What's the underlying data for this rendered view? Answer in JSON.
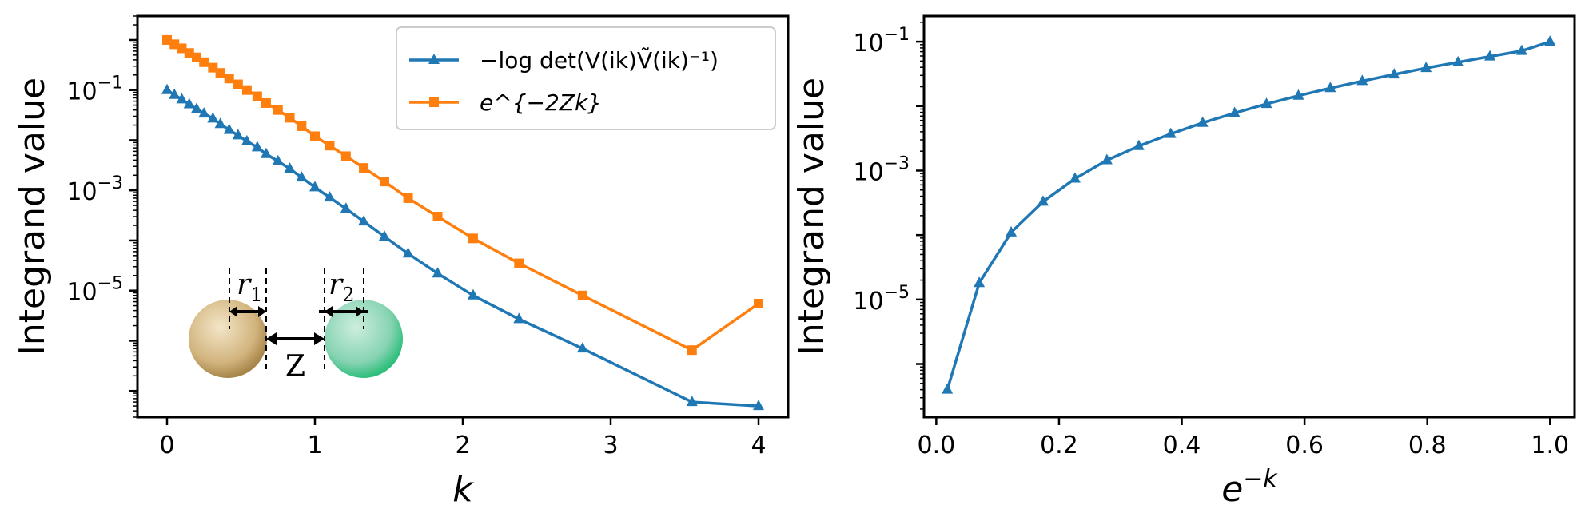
{
  "chart_data": [
    {
      "type": "line",
      "xlabel": "k",
      "ylabel": "Integrand value",
      "yscale": "log",
      "xlim": [
        -0.2,
        4.2
      ],
      "ylim": [
        3e-08,
        3.0
      ],
      "xticks": [
        "0",
        "1",
        "2",
        "3",
        "4"
      ],
      "yticks": [
        {
          "base": "10",
          "exp": "−1",
          "value": 0.1
        },
        {
          "base": "10",
          "exp": "−3",
          "value": 0.001
        },
        {
          "base": "10",
          "exp": "−5",
          "value": 1e-05
        }
      ],
      "legend_position": "top-right",
      "series": [
        {
          "name": "−log det(V(ik)Ṽ(ik)⁻¹)",
          "color": "#1f77b4",
          "marker": "triangle",
          "x": [
            0.0,
            0.05,
            0.1,
            0.15,
            0.2,
            0.25,
            0.31,
            0.36,
            0.42,
            0.48,
            0.54,
            0.61,
            0.67,
            0.75,
            0.83,
            0.91,
            1.0,
            1.1,
            1.21,
            1.33,
            1.47,
            1.63,
            1.83,
            2.07,
            2.38,
            2.81,
            3.55,
            4.0
          ],
          "values": [
            0.1,
            0.08,
            0.065,
            0.052,
            0.042,
            0.034,
            0.027,
            0.021,
            0.016,
            0.0125,
            0.0095,
            0.0072,
            0.0053,
            0.0038,
            0.0027,
            0.0018,
            0.00115,
            0.00072,
            0.00043,
            0.00024,
            0.00012,
            5.5e-05,
            2.2e-05,
            8e-06,
            2.7e-06,
            7e-07,
            6e-08,
            5e-08
          ]
        },
        {
          "name": "e^{−2Zk}",
          "color": "#ff7f0e",
          "marker": "square",
          "x": [
            0.0,
            0.05,
            0.1,
            0.15,
            0.2,
            0.25,
            0.31,
            0.36,
            0.42,
            0.48,
            0.54,
            0.61,
            0.67,
            0.75,
            0.83,
            0.91,
            1.0,
            1.1,
            1.21,
            1.33,
            1.47,
            1.63,
            1.83,
            2.07,
            2.38,
            2.81,
            3.55,
            4.0
          ],
          "values": [
            1.0,
            0.82,
            0.68,
            0.55,
            0.45,
            0.36,
            0.28,
            0.22,
            0.17,
            0.13,
            0.1,
            0.075,
            0.055,
            0.04,
            0.028,
            0.019,
            0.012,
            0.0078,
            0.0048,
            0.0028,
            0.0015,
            0.0007,
            0.0003,
            0.00011,
            3.5e-05,
            8e-06,
            6.5e-07,
            5.5e-06
          ]
        }
      ],
      "inset": {
        "labels": {
          "r1_base": "r",
          "r1_sub": "1",
          "r2_base": "r",
          "r2_sub": "2",
          "z": "Z"
        },
        "colors": {
          "sphere_left": "#c9a86a",
          "sphere_right": "#3fbf8f"
        }
      }
    },
    {
      "type": "line",
      "xlabel_base": "e",
      "xlabel_exp": "−k",
      "ylabel": "Integrand value",
      "yscale": "log",
      "xlim": [
        -0.02,
        1.04
      ],
      "ylim": [
        1.5e-07,
        0.25
      ],
      "xticks": [
        "0.0",
        "0.2",
        "0.4",
        "0.6",
        "0.8",
        "1.0"
      ],
      "yticks": [
        {
          "base": "10",
          "exp": "−1",
          "value": 0.1
        },
        {
          "base": "10",
          "exp": "−3",
          "value": 0.001
        },
        {
          "base": "10",
          "exp": "−5",
          "value": 1e-05
        }
      ],
      "series": [
        {
          "color": "#1f77b4",
          "marker": "triangle",
          "x": [
            0.018,
            0.07,
            0.122,
            0.174,
            0.226,
            0.278,
            0.33,
            0.382,
            0.434,
            0.486,
            0.538,
            0.59,
            0.642,
            0.694,
            0.746,
            0.798,
            0.85,
            0.902,
            0.954,
            1.0
          ],
          "values": [
            4e-07,
            1.8e-05,
            0.00011,
            0.00033,
            0.00075,
            0.00145,
            0.0024,
            0.0037,
            0.0055,
            0.0078,
            0.0108,
            0.0145,
            0.019,
            0.0245,
            0.031,
            0.039,
            0.048,
            0.059,
            0.072,
            0.1
          ]
        }
      ]
    }
  ]
}
